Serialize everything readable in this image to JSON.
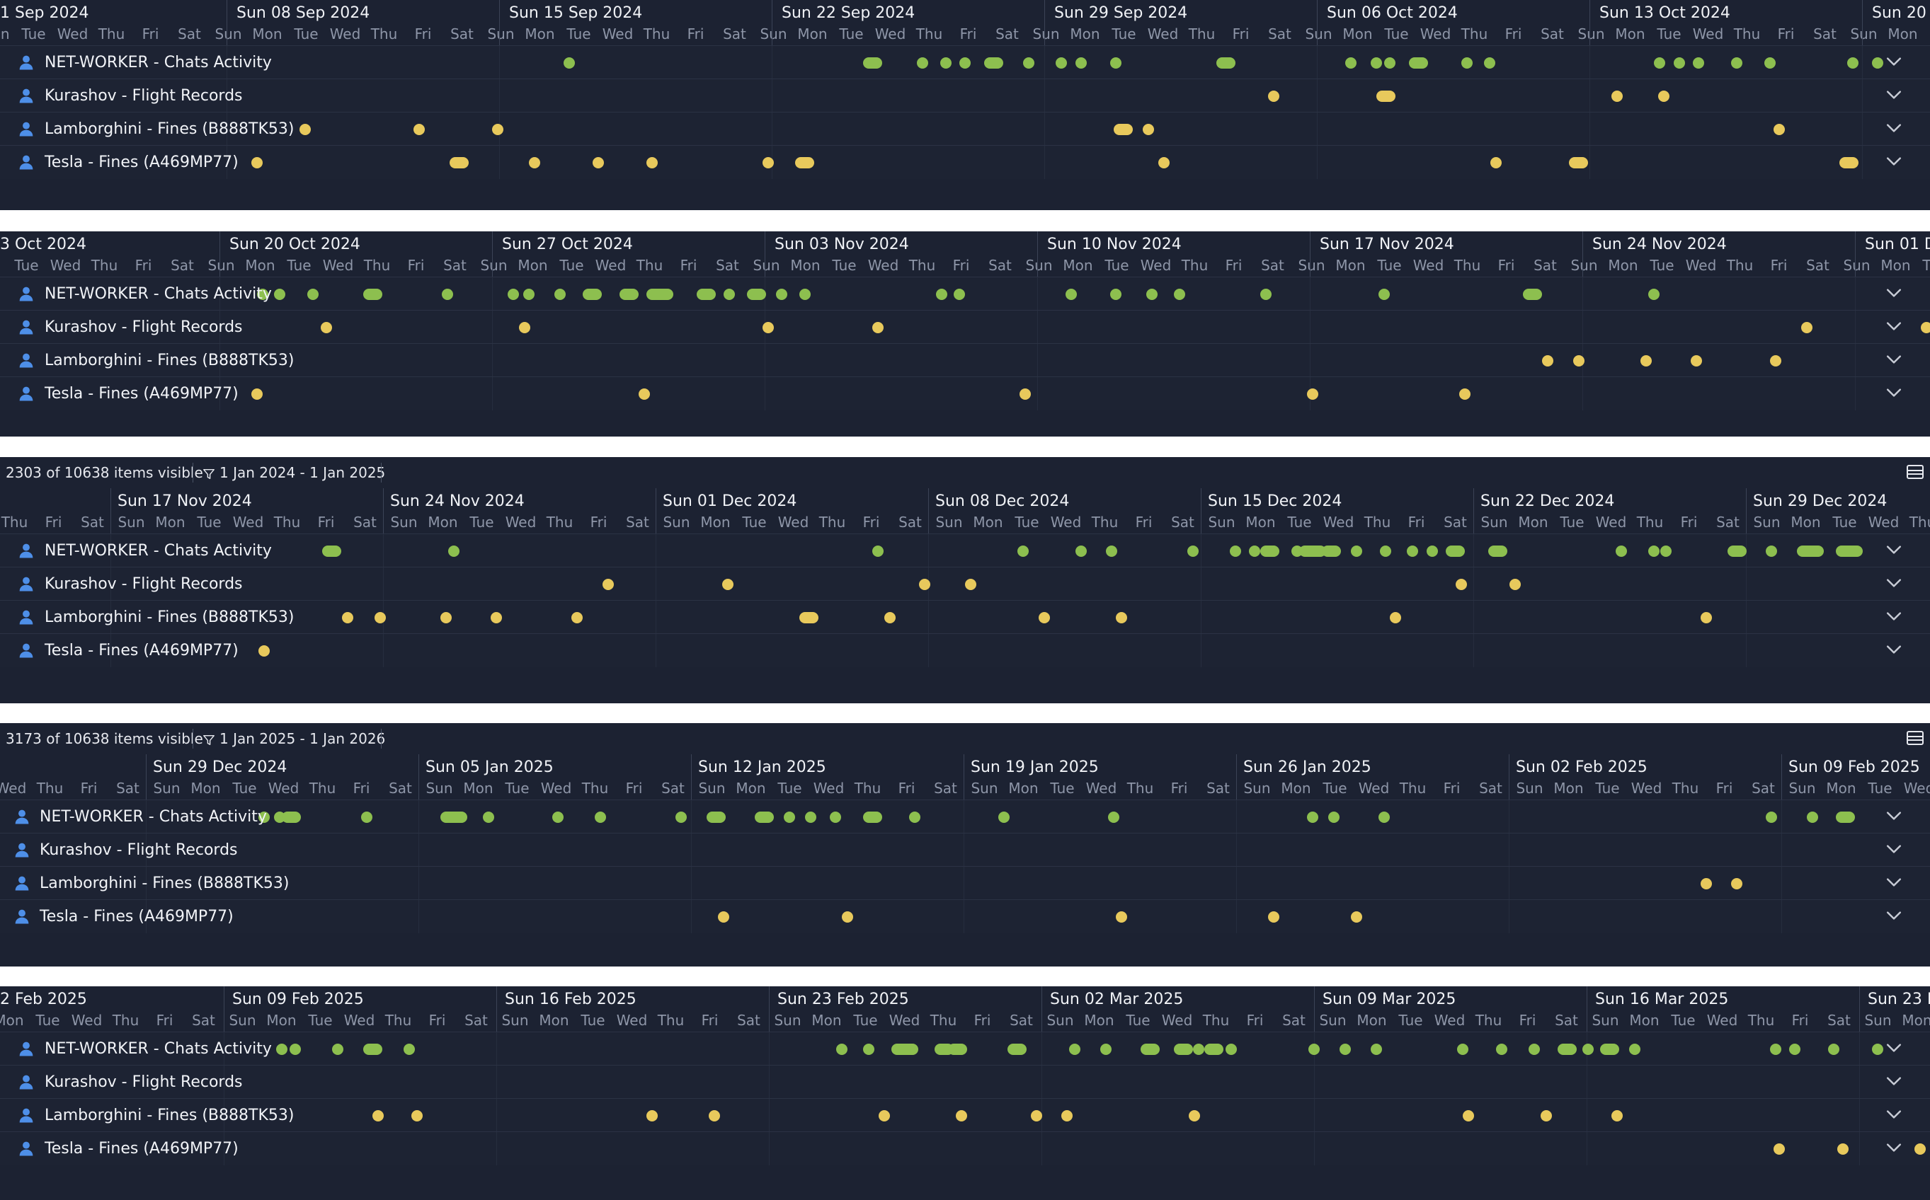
{
  "colors": {
    "green": "#8dbf4f",
    "yellow": "#e8c95c",
    "user_icon": "#4e8fe8"
  },
  "icons": {
    "lane": "user-icon",
    "expand": "chevron-down-icon",
    "filter": "filter-icon",
    "layout": "layout-icon"
  },
  "lane_names": [
    "NET-WORKER - Chats Activity",
    "Kurashov - Flight Records",
    "Lamborghini - Fines (B888TK53)",
    "Tesla - Fines (A469MP77)"
  ],
  "panels": [
    {
      "toolbar": null,
      "week_labels": [
        "1 Sep 2024",
        "Sun 08 Sep 2024",
        "Sun 15 Sep 2024",
        "Sun 22 Sep 2024",
        "Sun 29 Sep 2024",
        "Sun 06 Oct 2024",
        "Sun 13 Oct 2024",
        "Sun 20 C"
      ],
      "lanes": [
        {
          "name": "NET-WORKER - Chats Activity",
          "color": "green",
          "dots": [
            [
              0.295,
              1
            ],
            [
              0.452,
              2
            ],
            [
              0.478,
              1
            ],
            [
              0.49,
              1
            ],
            [
              0.5,
              1
            ],
            [
              0.515,
              2
            ],
            [
              0.533,
              1
            ],
            [
              0.55,
              1
            ],
            [
              0.56,
              1
            ],
            [
              0.578,
              1
            ],
            [
              0.635,
              2
            ],
            [
              0.7,
              1
            ],
            [
              0.713,
              1
            ],
            [
              0.72,
              1
            ],
            [
              0.735,
              2
            ],
            [
              0.76,
              1
            ],
            [
              0.772,
              1
            ],
            [
              0.86,
              1
            ],
            [
              0.87,
              1
            ],
            [
              0.88,
              1
            ],
            [
              0.9,
              1
            ],
            [
              0.917,
              1
            ],
            [
              0.96,
              1
            ],
            [
              0.973,
              1
            ]
          ]
        },
        {
          "name": "Kurashov - Flight Records",
          "color": "yellow",
          "dots": [
            [
              0.66,
              1
            ],
            [
              0.718,
              2
            ],
            [
              0.838,
              1
            ],
            [
              0.862,
              1
            ]
          ]
        },
        {
          "name": "Lamborghini - Fines (B888TK53)",
          "color": "yellow",
          "dots": [
            [
              0.158,
              1
            ],
            [
              0.217,
              1
            ],
            [
              0.258,
              1
            ],
            [
              0.582,
              2
            ],
            [
              0.595,
              1
            ],
            [
              0.922,
              1
            ]
          ]
        },
        {
          "name": "Tesla - Fines (A469MP77)",
          "color": "yellow",
          "dots": [
            [
              0.133,
              1
            ],
            [
              0.238,
              2
            ],
            [
              0.277,
              1
            ],
            [
              0.31,
              1
            ],
            [
              0.338,
              1
            ],
            [
              0.398,
              1
            ],
            [
              0.417,
              2
            ],
            [
              0.603,
              1
            ],
            [
              0.775,
              1
            ],
            [
              0.818,
              2
            ],
            [
              0.958,
              2
            ]
          ]
        }
      ]
    },
    {
      "toolbar": null,
      "week_labels": [
        "3 Oct 2024",
        "Sun 20 Oct 2024",
        "Sun 27 Oct 2024",
        "Sun 03 Nov 2024",
        "Sun 10 Nov 2024",
        "Sun 17 Nov 2024",
        "Sun 24 Nov 2024",
        "Sun 01 De"
      ],
      "lanes": [
        {
          "name": "NET-WORKER - Chats Activity",
          "color": "green",
          "dots": [
            [
              0.136,
              1
            ],
            [
              0.145,
              1
            ],
            [
              0.162,
              1
            ],
            [
              0.193,
              2
            ],
            [
              0.232,
              1
            ],
            [
              0.266,
              1
            ],
            [
              0.274,
              1
            ],
            [
              0.29,
              1
            ],
            [
              0.307,
              2
            ],
            [
              0.326,
              2
            ],
            [
              0.342,
              3
            ],
            [
              0.366,
              2
            ],
            [
              0.378,
              1
            ],
            [
              0.392,
              2
            ],
            [
              0.405,
              1
            ],
            [
              0.417,
              1
            ],
            [
              0.488,
              1
            ],
            [
              0.497,
              1
            ],
            [
              0.555,
              1
            ],
            [
              0.578,
              1
            ],
            [
              0.597,
              1
            ],
            [
              0.611,
              1
            ],
            [
              0.656,
              1
            ],
            [
              0.717,
              1
            ],
            [
              0.794,
              2
            ],
            [
              0.857,
              1
            ]
          ]
        },
        {
          "name": "Kurashov - Flight Records",
          "color": "yellow",
          "dots": [
            [
              0.169,
              1
            ],
            [
              0.272,
              1
            ],
            [
              0.398,
              1
            ],
            [
              0.455,
              1
            ],
            [
              0.936,
              1
            ],
            [
              0.998,
              1
            ]
          ]
        },
        {
          "name": "Lamborghini - Fines (B888TK53)",
          "color": "yellow",
          "dots": [
            [
              0.802,
              1
            ],
            [
              0.818,
              1
            ],
            [
              0.853,
              1
            ],
            [
              0.879,
              1
            ],
            [
              0.92,
              1
            ]
          ]
        },
        {
          "name": "Tesla - Fines (A469MP77)",
          "color": "yellow",
          "dots": [
            [
              0.133,
              1
            ],
            [
              0.334,
              1
            ],
            [
              0.531,
              1
            ],
            [
              0.68,
              1
            ],
            [
              0.759,
              1
            ]
          ]
        }
      ]
    },
    {
      "toolbar": {
        "count": "2303 of 10638 items visible",
        "filter": "1 Jan 2024 - 1 Jan 2025"
      },
      "week_labels": [
        "Sun 17 Nov 2024",
        "Sun 24 Nov 2024",
        "Sun 01 Dec 2024",
        "Sun 08 Dec 2024",
        "Sun 15 Dec 2024",
        "Sun 22 Dec 2024",
        "Sun 29 Dec 2024"
      ],
      "lanes": [
        {
          "name": "NET-WORKER - Chats Activity",
          "color": "green",
          "dots": [
            [
              0.172,
              2
            ],
            [
              0.235,
              1
            ],
            [
              0.455,
              1
            ],
            [
              0.53,
              1
            ],
            [
              0.56,
              1
            ],
            [
              0.576,
              1
            ],
            [
              0.618,
              1
            ],
            [
              0.64,
              1
            ],
            [
              0.65,
              1
            ],
            [
              0.658,
              2
            ],
            [
              0.672,
              1
            ],
            [
              0.68,
              3
            ],
            [
              0.69,
              2
            ],
            [
              0.703,
              1
            ],
            [
              0.718,
              1
            ],
            [
              0.732,
              1
            ],
            [
              0.742,
              1
            ],
            [
              0.754,
              2
            ],
            [
              0.776,
              2
            ],
            [
              0.84,
              1
            ],
            [
              0.857,
              1
            ],
            [
              0.863,
              1
            ],
            [
              0.9,
              2
            ],
            [
              0.918,
              1
            ],
            [
              0.938,
              3
            ],
            [
              0.958,
              3
            ]
          ]
        },
        {
          "name": "Kurashov - Flight Records",
          "color": "yellow",
          "dots": [
            [
              0.315,
              1
            ],
            [
              0.377,
              1
            ],
            [
              0.479,
              1
            ],
            [
              0.503,
              1
            ],
            [
              0.757,
              1
            ],
            [
              0.785,
              1
            ]
          ]
        },
        {
          "name": "Lamborghini - Fines (B888TK53)",
          "color": "yellow",
          "dots": [
            [
              0.18,
              1
            ],
            [
              0.197,
              1
            ],
            [
              0.231,
              1
            ],
            [
              0.257,
              1
            ],
            [
              0.299,
              1
            ],
            [
              0.419,
              2
            ],
            [
              0.461,
              1
            ],
            [
              0.541,
              1
            ],
            [
              0.581,
              1
            ],
            [
              0.723,
              1
            ],
            [
              0.884,
              1
            ]
          ]
        },
        {
          "name": "Tesla - Fines (A469MP77)",
          "color": "yellow",
          "dots": [
            [
              0.137,
              1
            ]
          ]
        }
      ]
    },
    {
      "toolbar": {
        "count": "3173 of 10638 items visible",
        "filter": "1 Jan 2025 - 1 Jan 2026"
      },
      "week_labels": [
        "Sun 29 Dec 2024",
        "Sun 05 Jan 2025",
        "Sun 12 Jan 2025",
        "Sun 19 Jan 2025",
        "Sun 26 Jan 2025",
        "Sun 02 Feb 2025",
        "Sun 09 Feb 2025"
      ],
      "lanes": [
        {
          "name": "NET-WORKER - Chats Activity",
          "color": "green",
          "dots": [
            [
              0.137,
              1
            ],
            [
              0.145,
              1
            ],
            [
              0.151,
              2
            ],
            [
              0.19,
              1
            ],
            [
              0.235,
              3
            ],
            [
              0.253,
              1
            ],
            [
              0.289,
              1
            ],
            [
              0.311,
              1
            ],
            [
              0.353,
              1
            ],
            [
              0.371,
              2
            ],
            [
              0.396,
              2
            ],
            [
              0.409,
              1
            ],
            [
              0.42,
              1
            ],
            [
              0.433,
              1
            ],
            [
              0.452,
              2
            ],
            [
              0.474,
              1
            ],
            [
              0.52,
              1
            ],
            [
              0.577,
              1
            ],
            [
              0.68,
              1
            ],
            [
              0.691,
              1
            ],
            [
              0.717,
              1
            ],
            [
              0.918,
              1
            ],
            [
              0.939,
              1
            ],
            [
              0.956,
              2
            ]
          ]
        },
        {
          "name": "Kurashov - Flight Records",
          "color": "yellow",
          "dots": []
        },
        {
          "name": "Lamborghini - Fines (B888TK53)",
          "color": "yellow",
          "dots": [
            [
              0.884,
              1
            ],
            [
              0.9,
              1
            ]
          ]
        },
        {
          "name": "Tesla - Fines (A469MP77)",
          "color": "yellow",
          "dots": [
            [
              0.375,
              1
            ],
            [
              0.439,
              1
            ],
            [
              0.581,
              1
            ],
            [
              0.66,
              1
            ],
            [
              0.703,
              1
            ]
          ]
        }
      ]
    },
    {
      "toolbar": null,
      "week_labels": [
        "2 Feb 2025",
        "Sun 09 Feb 2025",
        "Sun 16 Feb 2025",
        "Sun 23 Feb 2025",
        "Sun 02 Mar 2025",
        "Sun 09 Mar 2025",
        "Sun 16 Mar 2025",
        "Sun 23 M"
      ],
      "lanes": [
        {
          "name": "NET-WORKER - Chats Activity",
          "color": "green",
          "dots": [
            [
              0.146,
              1
            ],
            [
              0.153,
              1
            ],
            [
              0.175,
              1
            ],
            [
              0.193,
              2
            ],
            [
              0.212,
              1
            ],
            [
              0.436,
              1
            ],
            [
              0.45,
              1
            ],
            [
              0.469,
              3
            ],
            [
              0.489,
              2
            ],
            [
              0.496,
              2
            ],
            [
              0.527,
              2
            ],
            [
              0.557,
              1
            ],
            [
              0.573,
              1
            ],
            [
              0.596,
              2
            ],
            [
              0.613,
              2
            ],
            [
              0.621,
              1
            ],
            [
              0.629,
              2
            ],
            [
              0.638,
              1
            ],
            [
              0.681,
              1
            ],
            [
              0.697,
              1
            ],
            [
              0.713,
              1
            ],
            [
              0.758,
              1
            ],
            [
              0.778,
              1
            ],
            [
              0.795,
              1
            ],
            [
              0.812,
              2
            ],
            [
              0.823,
              1
            ],
            [
              0.834,
              2
            ],
            [
              0.847,
              1
            ],
            [
              0.92,
              1
            ],
            [
              0.93,
              1
            ],
            [
              0.95,
              1
            ],
            [
              0.973,
              1
            ]
          ]
        },
        {
          "name": "Kurashov - Flight Records",
          "color": "yellow",
          "dots": []
        },
        {
          "name": "Lamborghini - Fines (B888TK53)",
          "color": "yellow",
          "dots": [
            [
              0.196,
              1
            ],
            [
              0.216,
              1
            ],
            [
              0.338,
              1
            ],
            [
              0.37,
              1
            ],
            [
              0.458,
              1
            ],
            [
              0.498,
              1
            ],
            [
              0.537,
              1
            ],
            [
              0.553,
              1
            ],
            [
              0.619,
              1
            ],
            [
              0.761,
              1
            ],
            [
              0.801,
              1
            ],
            [
              0.838,
              1
            ]
          ]
        },
        {
          "name": "Tesla - Fines (A469MP77)",
          "color": "yellow",
          "dots": [
            [
              0.922,
              1
            ],
            [
              0.955,
              1
            ],
            [
              0.995,
              1
            ]
          ]
        }
      ]
    }
  ]
}
